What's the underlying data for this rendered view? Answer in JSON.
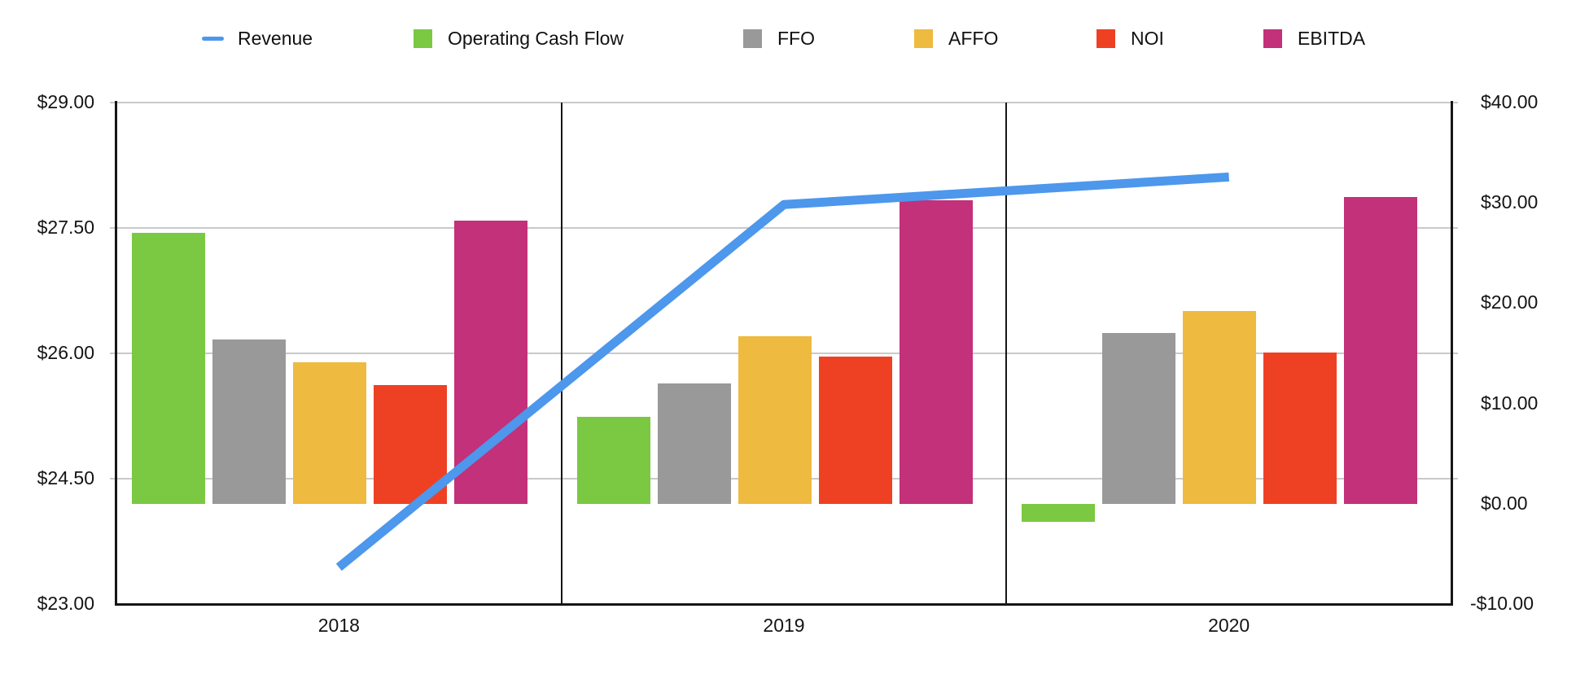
{
  "legend": {
    "items": [
      {
        "label": "Revenue",
        "color": "#4d97ec",
        "marker": "line"
      },
      {
        "label": "Operating Cash Flow",
        "color": "#7bc843",
        "marker": "square"
      },
      {
        "label": "FFO",
        "color": "#999999",
        "marker": "square"
      },
      {
        "label": "AFFO",
        "color": "#efba40",
        "marker": "square"
      },
      {
        "label": "NOI",
        "color": "#ee4124",
        "marker": "square"
      },
      {
        "label": "EBITDA",
        "color": "#c23179",
        "marker": "square"
      }
    ]
  },
  "chart_data": {
    "type": "combo-line-bar",
    "categories": [
      "2018",
      "2019",
      "2020"
    ],
    "line_series": {
      "name": "Revenue",
      "axis": "left",
      "color": "#4d97ec",
      "values": [
        23.44,
        27.78,
        28.11
      ]
    },
    "bar_series": [
      {
        "name": "Operating Cash Flow",
        "color": "#7bc843",
        "values": [
          27.0,
          8.7,
          -1.8
        ]
      },
      {
        "name": "FFO",
        "color": "#999999",
        "values": [
          16.4,
          12.0,
          17.0
        ]
      },
      {
        "name": "AFFO",
        "color": "#efba40",
        "values": [
          14.1,
          16.7,
          19.2
        ]
      },
      {
        "name": "NOI",
        "color": "#ee4124",
        "values": [
          11.8,
          14.7,
          15.1
        ]
      },
      {
        "name": "EBITDA",
        "color": "#c23179",
        "values": [
          28.2,
          30.3,
          30.6
        ]
      }
    ],
    "left_axis": {
      "min": 23,
      "max": 29,
      "tick_values": [
        29,
        27.5,
        26,
        24.5,
        23
      ],
      "ticks": [
        "$29.00",
        "$27.50",
        "$26.00",
        "$24.50",
        "$23.00"
      ]
    },
    "right_axis": {
      "min": -10,
      "max": 40,
      "tick_values": [
        40,
        30,
        20,
        10,
        0,
        -10
      ],
      "ticks": [
        "$40.00",
        "$30.00",
        "$20.00",
        "$10.00",
        "$0.00",
        "-$10.00"
      ]
    },
    "grid": "horizontal gridlines at left-axis ticks",
    "legend_position": "top",
    "panel_separators": true,
    "bar_baseline_right_axis": 0
  }
}
